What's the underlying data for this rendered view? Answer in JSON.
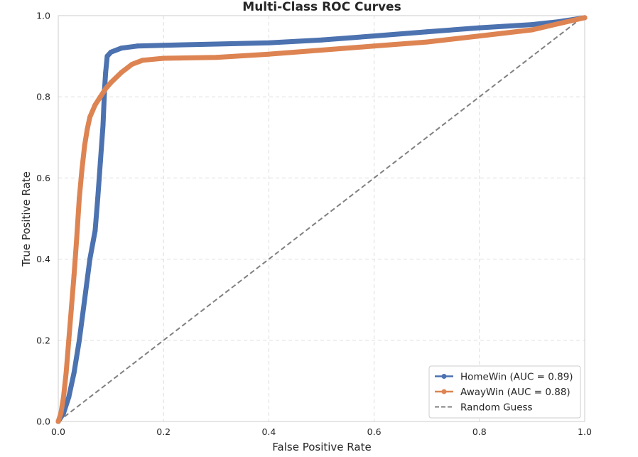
{
  "chart_data": {
    "type": "line",
    "title": "Multi-Class ROC Curves",
    "xlabel": "False Positive Rate",
    "ylabel": "True Positive Rate",
    "xlim": [
      0,
      1
    ],
    "ylim": [
      0,
      1
    ],
    "xticks": [
      "0.0",
      "0.2",
      "0.4",
      "0.6",
      "0.8",
      "1.0"
    ],
    "yticks": [
      "0.0",
      "0.2",
      "0.4",
      "0.6",
      "0.8",
      "1.0"
    ],
    "grid": true,
    "legend_position": "lower-right",
    "series": [
      {
        "name": "HomeWin (AUC = 0.89)",
        "color": "#4c72b0",
        "x": [
          0,
          0.01,
          0.02,
          0.03,
          0.04,
          0.05,
          0.06,
          0.07,
          0.075,
          0.08,
          0.085,
          0.088,
          0.09,
          0.093,
          0.1,
          0.12,
          0.15,
          0.2,
          0.3,
          0.4,
          0.5,
          0.6,
          0.7,
          0.8,
          0.9,
          0.95,
          1.0
        ],
        "y": [
          0,
          0.02,
          0.06,
          0.12,
          0.2,
          0.3,
          0.4,
          0.47,
          0.55,
          0.64,
          0.73,
          0.82,
          0.86,
          0.9,
          0.91,
          0.92,
          0.925,
          0.927,
          0.93,
          0.933,
          0.94,
          0.95,
          0.96,
          0.97,
          0.978,
          0.985,
          0.995
        ]
      },
      {
        "name": "AwayWin (AUC = 0.88)",
        "color": "#dd8452",
        "x": [
          0,
          0.005,
          0.01,
          0.015,
          0.02,
          0.025,
          0.03,
          0.035,
          0.04,
          0.045,
          0.05,
          0.055,
          0.06,
          0.07,
          0.08,
          0.09,
          0.1,
          0.12,
          0.14,
          0.16,
          0.2,
          0.3,
          0.4,
          0.5,
          0.6,
          0.7,
          0.8,
          0.9,
          0.95,
          1.0
        ],
        "y": [
          0,
          0.02,
          0.06,
          0.12,
          0.2,
          0.28,
          0.36,
          0.45,
          0.55,
          0.62,
          0.68,
          0.72,
          0.75,
          0.78,
          0.8,
          0.82,
          0.835,
          0.86,
          0.88,
          0.89,
          0.895,
          0.897,
          0.905,
          0.915,
          0.925,
          0.935,
          0.95,
          0.965,
          0.98,
          0.995
        ]
      },
      {
        "name": "Random Guess",
        "color": "#808080",
        "dashed": true,
        "x": [
          0,
          1
        ],
        "y": [
          0,
          1
        ]
      }
    ]
  }
}
